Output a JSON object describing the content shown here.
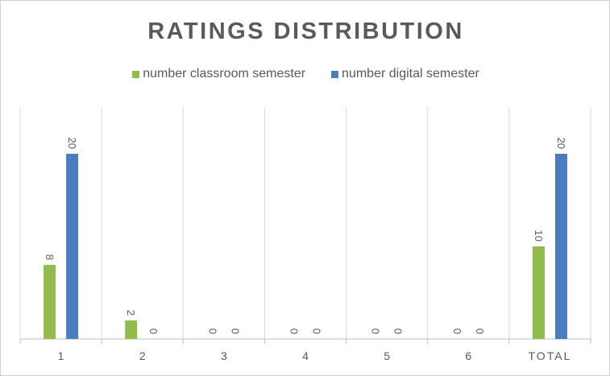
{
  "chart_data": {
    "type": "bar",
    "title": "RATINGS DISTRIBUTION",
    "categories": [
      "1",
      "2",
      "3",
      "4",
      "5",
      "6",
      "TOTAL"
    ],
    "series": [
      {
        "name": "number classroom semester",
        "color": "#8fbc4a",
        "values": [
          8,
          2,
          0,
          0,
          0,
          0,
          10
        ]
      },
      {
        "name": "number digital semester",
        "color": "#4a7cc0",
        "values": [
          20,
          0,
          0,
          0,
          0,
          0,
          20
        ]
      }
    ],
    "ylim": [
      0,
      20
    ],
    "grid": "vertical category separators",
    "legend": "top-center",
    "data_labels": "rotated vertical"
  }
}
